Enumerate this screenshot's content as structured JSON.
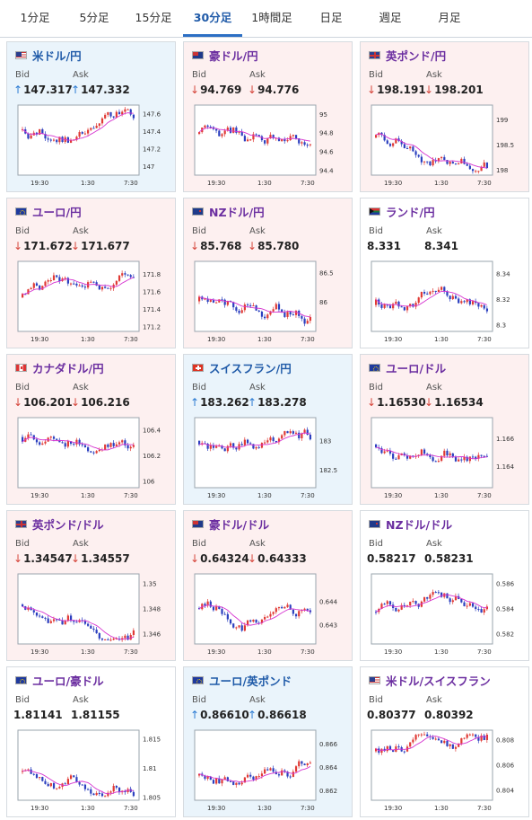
{
  "tabs": [
    {
      "label": "1分足",
      "active": false
    },
    {
      "label": "5分足",
      "active": false
    },
    {
      "label": "15分足",
      "active": false
    },
    {
      "label": "30分足",
      "active": true
    },
    {
      "label": "1時間足",
      "active": false
    },
    {
      "label": "日足",
      "active": false
    },
    {
      "label": "週足",
      "active": false
    },
    {
      "label": "月足",
      "active": false
    }
  ],
  "labels": {
    "bid": "Bid",
    "ask": "Ask"
  },
  "arrows": {
    "up": "↑",
    "down": "↓"
  },
  "colors": {
    "up_bg": "#eaf4fb",
    "down_bg": "#fdf0f0",
    "candle_up": "#e03a35",
    "candle_down": "#2b3fbf",
    "ma": "#d633d0"
  },
  "cards": [
    {
      "name": "米ドル/円",
      "flag": "flag-us-icon",
      "trend": "up",
      "bid": "147.317",
      "ask": "147.332",
      "chart_data": {
        "type": "candlestick",
        "x_ticks": [
          "19:30",
          "1:30",
          "7:30"
        ],
        "y_ticks": [
          "147.6",
          "147.4",
          "147.2",
          "147"
        ],
        "ylim": [
          146.9,
          147.7
        ]
      }
    },
    {
      "name": "豪ドル/円",
      "flag": "flag-au-icon",
      "trend": "down",
      "bid": "94.769",
      "ask": "94.776",
      "chart_data": {
        "type": "candlestick",
        "x_ticks": [
          "19:30",
          "1:30",
          "7:30"
        ],
        "y_ticks": [
          "95",
          "94.8",
          "94.6",
          "94.4"
        ],
        "ylim": [
          94.35,
          95.1
        ]
      }
    },
    {
      "name": "英ポンド/円",
      "flag": "flag-uk-icon",
      "trend": "down",
      "bid": "198.191",
      "ask": "198.201",
      "chart_data": {
        "type": "candlestick",
        "x_ticks": [
          "19:30",
          "1:30",
          "7:30"
        ],
        "y_ticks": [
          "199",
          "198.5",
          "198"
        ],
        "ylim": [
          197.9,
          199.3
        ]
      }
    },
    {
      "name": "ユーロ/円",
      "flag": "flag-eu-icon",
      "trend": "down",
      "bid": "171.672",
      "ask": "171.677",
      "chart_data": {
        "type": "candlestick",
        "x_ticks": [
          "19:30",
          "1:30",
          "7:30"
        ],
        "y_ticks": [
          "171.8",
          "171.6",
          "171.4",
          "171.2"
        ],
        "ylim": [
          171.15,
          171.95
        ]
      }
    },
    {
      "name": "NZドル/円",
      "flag": "flag-nz-icon",
      "trend": "down",
      "bid": "85.768",
      "ask": "85.780",
      "chart_data": {
        "type": "candlestick",
        "x_ticks": [
          "19:30",
          "1:30",
          "7:30"
        ],
        "y_ticks": [
          "86.5",
          "86"
        ],
        "ylim": [
          85.5,
          86.7
        ]
      }
    },
    {
      "name": "ランド/円",
      "flag": "flag-za-icon",
      "trend": "flat",
      "bid": "8.331",
      "ask": "8.341",
      "chart_data": {
        "type": "candlestick",
        "x_ticks": [
          "19:30",
          "1:30",
          "7:30"
        ],
        "y_ticks": [
          "8.34",
          "8.32",
          "8.3"
        ],
        "ylim": [
          8.295,
          8.35
        ]
      }
    },
    {
      "name": "カナダドル/円",
      "flag": "flag-ca-icon",
      "trend": "down",
      "bid": "106.201",
      "ask": "106.216",
      "chart_data": {
        "type": "candlestick",
        "x_ticks": [
          "19:30",
          "1:30",
          "7:30"
        ],
        "y_ticks": [
          "106.4",
          "106.2",
          "106"
        ],
        "ylim": [
          105.95,
          106.5
        ]
      }
    },
    {
      "name": "スイスフラン/円",
      "flag": "flag-ch-icon",
      "trend": "up",
      "bid": "183.262",
      "ask": "183.278",
      "chart_data": {
        "type": "candlestick",
        "x_ticks": [
          "19:30",
          "1:30",
          "7:30"
        ],
        "y_ticks": [
          "183",
          "182.5"
        ],
        "ylim": [
          182.2,
          183.4
        ]
      }
    },
    {
      "name": "ユーロ/ドル",
      "flag": "flag-eu-icon",
      "trend": "down",
      "bid": "1.16530",
      "ask": "1.16534",
      "chart_data": {
        "type": "candlestick",
        "x_ticks": [
          "19:30",
          "1:30",
          "7:30"
        ],
        "y_ticks": [
          "1.166",
          "1.164"
        ],
        "ylim": [
          1.1625,
          1.1675
        ]
      }
    },
    {
      "name": "英ポンド/ドル",
      "flag": "flag-uk-icon",
      "trend": "down",
      "bid": "1.34547",
      "ask": "1.34557",
      "chart_data": {
        "type": "candlestick",
        "x_ticks": [
          "19:30",
          "1:30",
          "7:30"
        ],
        "y_ticks": [
          "1.35",
          "1.348",
          "1.346"
        ],
        "ylim": [
          1.3452,
          1.3508
        ]
      }
    },
    {
      "name": "豪ドル/ドル",
      "flag": "flag-au-icon",
      "trend": "down",
      "bid": "0.64324",
      "ask": "0.64333",
      "chart_data": {
        "type": "candlestick",
        "x_ticks": [
          "19:30",
          "1:30",
          "7:30"
        ],
        "y_ticks": [
          "0.644",
          "0.643"
        ],
        "ylim": [
          0.6422,
          0.6452
        ]
      }
    },
    {
      "name": "NZドル/ドル",
      "flag": "flag-nz-icon",
      "trend": "flat",
      "bid": "0.58217",
      "ask": "0.58231",
      "chart_data": {
        "type": "candlestick",
        "x_ticks": [
          "19:30",
          "1:30",
          "7:30"
        ],
        "y_ticks": [
          "0.586",
          "0.584",
          "0.582"
        ],
        "ylim": [
          0.5812,
          0.5868
        ]
      }
    },
    {
      "name": "ユーロ/豪ドル",
      "flag": "flag-eu-icon",
      "trend": "flat",
      "bid": "1.81141",
      "ask": "1.81155",
      "chart_data": {
        "type": "candlestick",
        "x_ticks": [
          "19:30",
          "1:30",
          "7:30"
        ],
        "y_ticks": [
          "1.815",
          "1.81",
          "1.805"
        ],
        "ylim": [
          1.8045,
          1.8165
        ]
      }
    },
    {
      "name": "ユーロ/英ポンド",
      "flag": "flag-eu-icon",
      "trend": "up",
      "bid": "0.86610",
      "ask": "0.86618",
      "chart_data": {
        "type": "candlestick",
        "x_ticks": [
          "19:30",
          "1:30",
          "7:30"
        ],
        "y_ticks": [
          "0.866",
          "0.864",
          "0.862"
        ],
        "ylim": [
          0.8612,
          0.8672
        ]
      }
    },
    {
      "name": "米ドル/スイスフラン",
      "flag": "flag-us-icon",
      "trend": "flat",
      "bid": "0.80377",
      "ask": "0.80392",
      "chart_data": {
        "type": "candlestick",
        "x_ticks": [
          "19:30",
          "1:30",
          "7:30"
        ],
        "y_ticks": [
          "0.808",
          "0.806",
          "0.804"
        ],
        "ylim": [
          0.8032,
          0.8088
        ]
      }
    }
  ]
}
